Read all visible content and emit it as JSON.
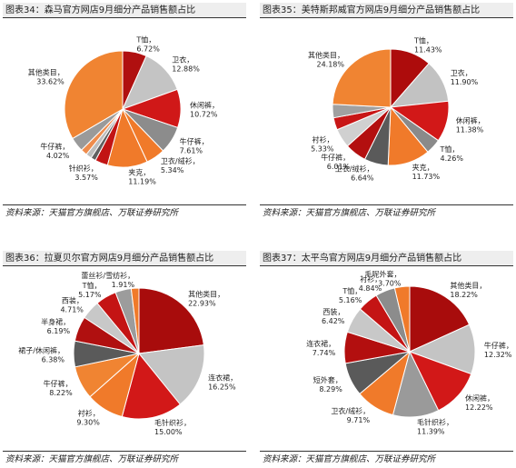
{
  "panels": [
    {
      "title": "图表34：森马官方网店9月细分产品销售额占比",
      "source": "资料来源：天猫官方旗舰店、万联证券研究所"
    },
    {
      "title": "图表35：美特斯邦威官方网店9月细分产品销售额占比",
      "source": "资料来源：天猫官方旗舰店、万联证券研究所"
    },
    {
      "title": "图表36：拉夏贝尔官方网店9月细分产品销售额占比",
      "source": "资料来源：天猫官方旗舰店、万联证券研究所"
    },
    {
      "title": "图表37：太平鸟官方网店9月细分产品销售额占比",
      "source": "资料来源：天猫官方旗舰店、万联证券研究所"
    }
  ],
  "chart_data": [
    {
      "type": "pie",
      "title": "图表34：森马官方网店9月细分产品销售额占比",
      "slices": [
        {
          "label": "T恤",
          "value": 6.72,
          "color": "#b01010"
        },
        {
          "label": "卫衣",
          "value": 12.88,
          "color": "#c4c4c4"
        },
        {
          "label": "休闲裤",
          "value": 10.72,
          "color": "#d01818"
        },
        {
          "label": "牛仔裤",
          "value": 7.61,
          "color": "#8c8c8c"
        },
        {
          "label": "卫衣/绒衫",
          "value": 5.34,
          "color": "#f07a2a"
        },
        {
          "label": "夹克",
          "value": 11.19,
          "color": "#f07a2a"
        },
        {
          "label": "针织衫",
          "value": 3.57,
          "color": "#c21414"
        },
        {
          "label": "",
          "value": 1.4,
          "color": "#606060"
        },
        {
          "label": "",
          "value": 1.6,
          "color": "#bdbdbd"
        },
        {
          "label": "",
          "value": 1.8,
          "color": "#ef8c4c"
        },
        {
          "label": "牛仔裤",
          "value": 4.02,
          "color": "#9a9a9a"
        },
        {
          "label": "其他类目",
          "value": 33.62,
          "color": "#f08432"
        }
      ]
    },
    {
      "type": "pie",
      "title": "图表35：美特斯邦威官方网店9月细分产品销售额占比",
      "slices": [
        {
          "label": "T恤",
          "value": 11.43,
          "color": "#ad0c0c"
        },
        {
          "label": "卫衣",
          "value": 11.9,
          "color": "#c2c2c2"
        },
        {
          "label": "休闲裤",
          "value": 11.38,
          "color": "#d21818"
        },
        {
          "label": "T恤",
          "value": 4.26,
          "color": "#8a8a8a"
        },
        {
          "label": "夹克",
          "value": 11.73,
          "color": "#f07a2a"
        },
        {
          "label": "卫衣/绒衫",
          "value": 6.64,
          "color": "#5a5a5a"
        },
        {
          "label": "牛仔裤",
          "value": 6.01,
          "color": "#b30f0f"
        },
        {
          "label": "衬衫",
          "value": 5.33,
          "color": "#d0d0d0"
        },
        {
          "label": "",
          "value": 3.4,
          "color": "#c81616"
        },
        {
          "label": "",
          "value": 3.74,
          "color": "#a0a0a0"
        },
        {
          "label": "其他类目",
          "value": 24.18,
          "color": "#f08432"
        }
      ]
    },
    {
      "type": "pie",
      "title": "图表36：拉夏贝尔官方网店9月细分产品销售额占比",
      "slices": [
        {
          "label": "其他类目",
          "value": 22.93,
          "color": "#a80c0c"
        },
        {
          "label": "连衣裙",
          "value": 16.25,
          "color": "#c4c4c4"
        },
        {
          "label": "毛针织衫",
          "value": 15.0,
          "color": "#d21818"
        },
        {
          "label": "衬衫",
          "value": 9.3,
          "color": "#f07a2a"
        },
        {
          "label": "牛仔裤",
          "value": 8.22,
          "color": "#f08432"
        },
        {
          "label": "裙子/休闲裤",
          "value": 6.38,
          "color": "#5a5a5a"
        },
        {
          "label": "半身裙",
          "value": 6.19,
          "color": "#b01010"
        },
        {
          "label": "西装",
          "value": 4.71,
          "color": "#c8c8c8"
        },
        {
          "label": "T恤",
          "value": 5.17,
          "color": "#c41414"
        },
        {
          "label": "",
          "value": 3.94,
          "color": "#9c9c9c"
        },
        {
          "label": "蕾丝衫/雪纺衫",
          "value": 1.91,
          "color": "#f07a2a"
        }
      ]
    },
    {
      "type": "pie",
      "title": "图表37：太平鸟官方网店9月细分产品销售额占比",
      "slices": [
        {
          "label": "其他类目",
          "value": 18.22,
          "color": "#a80c0c"
        },
        {
          "label": "牛仔裤",
          "value": 12.32,
          "color": "#c4c4c4"
        },
        {
          "label": "休闲裤",
          "value": 12.22,
          "color": "#d21818"
        },
        {
          "label": "毛针织衫",
          "value": 11.39,
          "color": "#9a9a9a"
        },
        {
          "label": "卫衣/绒衫",
          "value": 9.71,
          "color": "#f07a2a"
        },
        {
          "label": "短外套",
          "value": 8.29,
          "color": "#5a5a5a"
        },
        {
          "label": "连衣裙",
          "value": 7.74,
          "color": "#b30f0f"
        },
        {
          "label": "西装",
          "value": 6.42,
          "color": "#c8c8c8"
        },
        {
          "label": "T恤",
          "value": 5.16,
          "color": "#c41414"
        },
        {
          "label": "衬衫",
          "value": 4.84,
          "color": "#8c8c8c"
        },
        {
          "label": "毛呢外套",
          "value": 3.7,
          "color": "#f07a2a"
        }
      ]
    }
  ]
}
